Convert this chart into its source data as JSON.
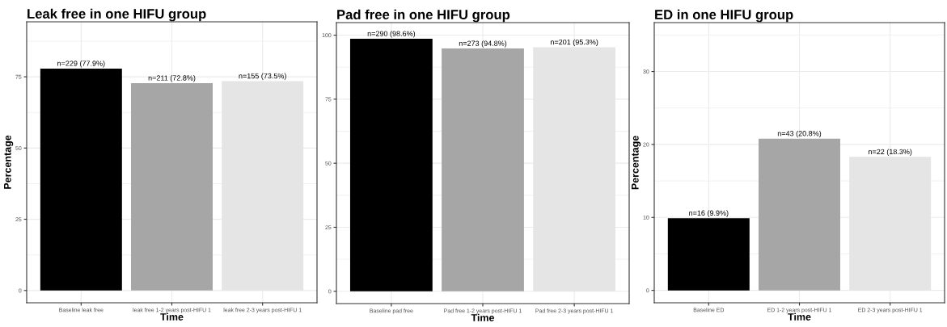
{
  "chart_data": [
    {
      "type": "bar",
      "title": "Leak free in one HIFU group",
      "xlabel": "Time",
      "ylabel": "Percentage",
      "categories": [
        "Baseline leak free",
        "leak free 1-2 years post-HIFU 1",
        "leak free 2-3 years post-HIFU 1"
      ],
      "values": [
        77.9,
        72.8,
        73.5
      ],
      "colors": [
        "#000000",
        "#a6a6a6",
        "#e5e5e5"
      ],
      "value_labels": [
        "n=229 (77.9%)",
        "n=211 (72.8%)",
        "n=155 (73.5%)"
      ],
      "ylim": [
        -4.3,
        94.3
      ],
      "yticks": [
        0,
        25,
        50,
        75
      ],
      "grid": true,
      "legend": false
    },
    {
      "type": "bar",
      "title": "Pad free in one HIFU group",
      "xlabel": "Time",
      "categories": [
        "Baseline pad free",
        "Pad free 1-2 years post-HIFU 1",
        "Pad free 2-3 years post-HIFU 1"
      ],
      "values": [
        98.6,
        94.8,
        95.3
      ],
      "colors": [
        "#000000",
        "#a6a6a6",
        "#e5e5e5"
      ],
      "value_labels": [
        "n=290 (98.6%)",
        "n=273 (94.8%)",
        "n=201 (95.3%)"
      ],
      "ylim": [
        -4.8,
        104.9
      ],
      "yticks": [
        0,
        25,
        50,
        75,
        100
      ],
      "grid": true,
      "legend": false
    },
    {
      "type": "bar",
      "title": "ED in one HIFU group",
      "xlabel": "Time",
      "ylabel": "Percentage",
      "categories": [
        "Baseline ED",
        "ED 1-2 years post-HIFU 1",
        "ED 2-3 years post-HIFU 1"
      ],
      "values": [
        9.9,
        20.8,
        18.3
      ],
      "colors": [
        "#000000",
        "#a6a6a6",
        "#e5e5e5"
      ],
      "value_labels": [
        "n=16 (9.9%)",
        "n=43 (20.8%)",
        "n=22 (18.3%)"
      ],
      "ylim": [
        -1.7,
        36.7
      ],
      "yticks": [
        0,
        10,
        20,
        30
      ],
      "grid": true,
      "legend": false
    }
  ]
}
